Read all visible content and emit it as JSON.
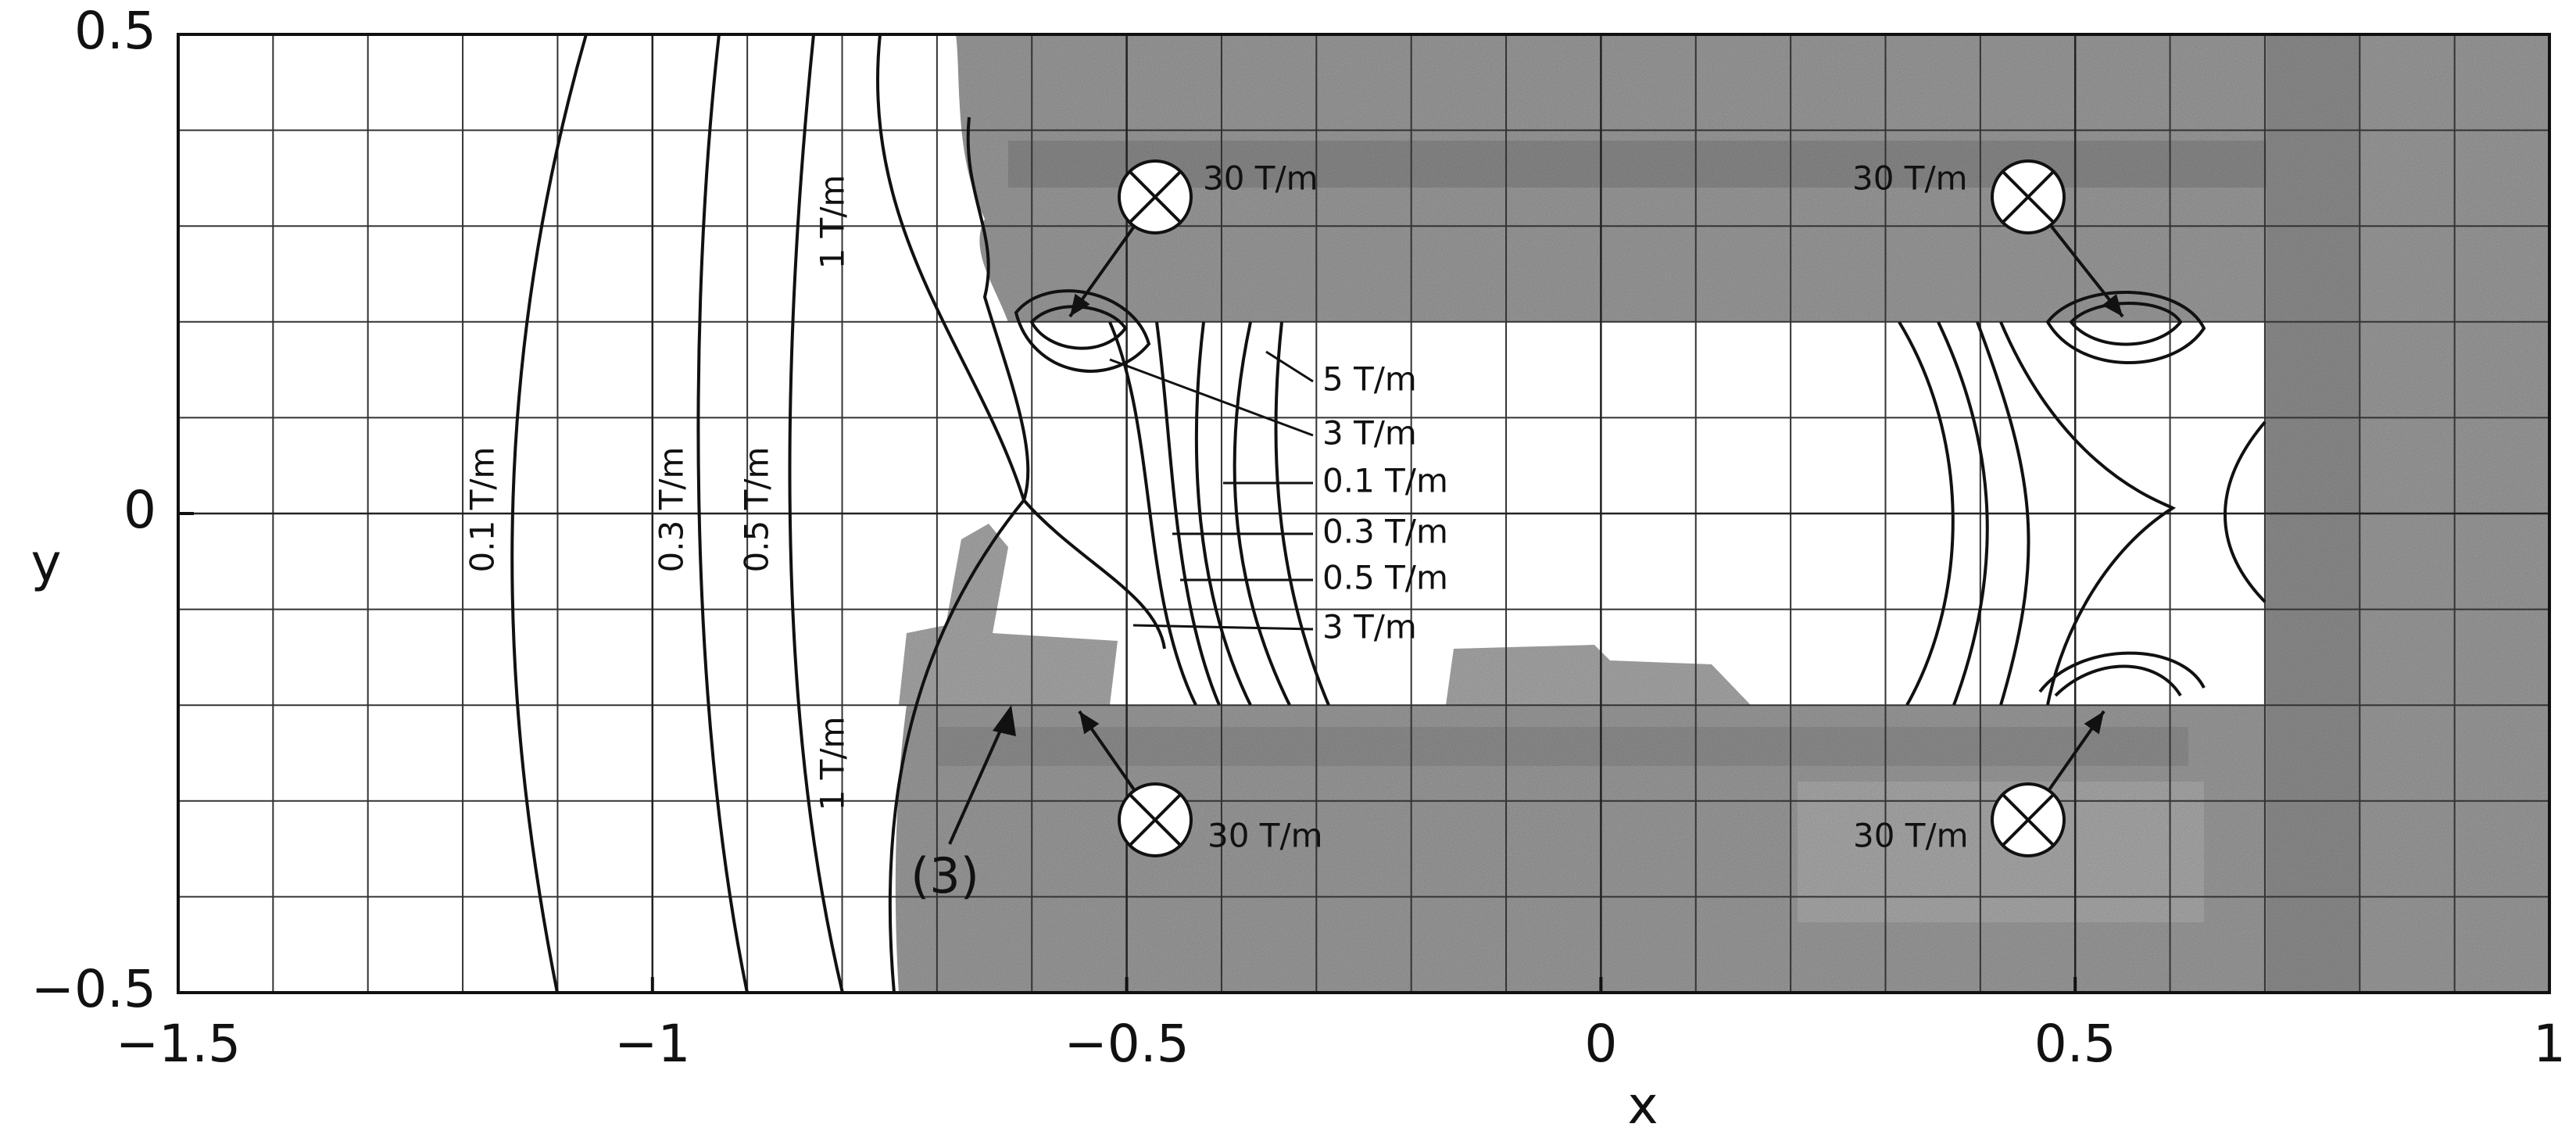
{
  "chart_data": {
    "type": "contour",
    "xlabel": "x",
    "ylabel": "y",
    "xlim": [
      -1.5,
      1
    ],
    "ylim": [
      -0.5,
      0.5
    ],
    "xticks": [
      {
        "value": -1.5,
        "label": "−1.5"
      },
      {
        "value": -1,
        "label": "−1"
      },
      {
        "value": -0.5,
        "label": "−0.5"
      },
      0,
      0.5,
      1
    ],
    "yticks": [
      {
        "value": -0.5,
        "label": "−0.5"
      },
      0,
      0.5
    ],
    "grid": true,
    "annotations": [
      "30 T/m",
      "30 T/m",
      "30 T/m",
      "30 T/m",
      "5 T/m",
      "3 T/m",
      "0.1 T/m",
      "0.3 T/m",
      "0.5 T/m",
      "3 T/m",
      "0.1 T/m",
      "0.3 T/m",
      "0.5 T/m",
      "1 T/m",
      "1 T/m",
      "(3)"
    ]
  }
}
